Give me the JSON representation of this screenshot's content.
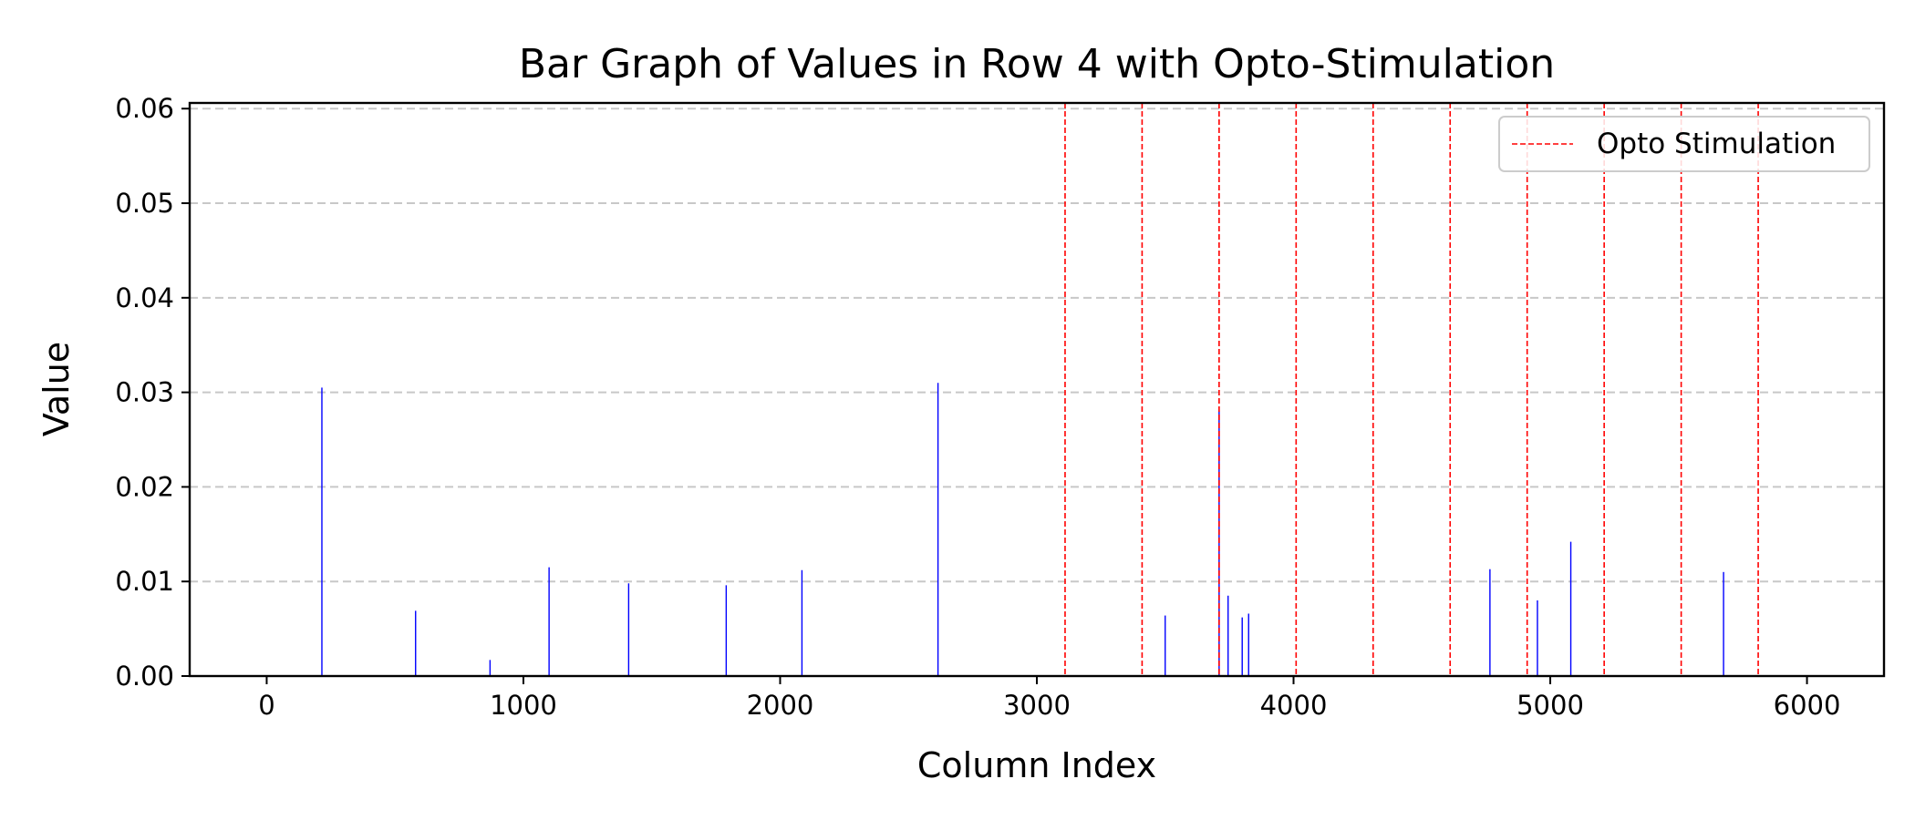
{
  "chart_data": {
    "type": "bar",
    "title": "Bar Graph of Values in Row 4 with Opto-Stimulation",
    "xlabel": "Column Index",
    "ylabel": "Value",
    "xlim": [
      -300,
      6300
    ],
    "ylim": [
      0,
      0.0606
    ],
    "x_ticks": [
      0,
      1000,
      2000,
      3000,
      4000,
      5000,
      6000
    ],
    "x_tick_labels": [
      "0",
      "1000",
      "2000",
      "3000",
      "4000",
      "5000",
      "6000"
    ],
    "y_ticks": [
      0,
      0.01,
      0.02,
      0.03,
      0.04,
      0.05,
      0.06
    ],
    "y_tick_labels": [
      "0.00",
      "0.01",
      "0.02",
      "0.03",
      "0.04",
      "0.05",
      "0.06"
    ],
    "grid": "y, dashed",
    "bar_color": "#0000ff",
    "series": [
      {
        "x": [
          215,
          580,
          870,
          1100,
          1410,
          1790,
          2085,
          2615,
          3500,
          3710,
          3745,
          3800,
          3825,
          4765,
          4950,
          5080,
          5675
        ],
        "values": [
          0.0305,
          0.0069,
          0.0017,
          0.0115,
          0.0098,
          0.0096,
          0.0112,
          0.031,
          0.0064,
          0.028,
          0.0085,
          0.0062,
          0.0066,
          0.0113,
          0.008,
          0.0142,
          0.011
        ]
      }
    ],
    "opto_stimulation": {
      "label": "Opto Stimulation",
      "color": "#ff0000",
      "line_style": "dashed",
      "x": [
        3410,
        3710,
        4010,
        4310,
        4610,
        4910,
        5210,
        5510,
        5810,
        3110
      ]
    },
    "legend": {
      "position": "upper right",
      "entries": [
        "Opto Stimulation"
      ]
    }
  }
}
